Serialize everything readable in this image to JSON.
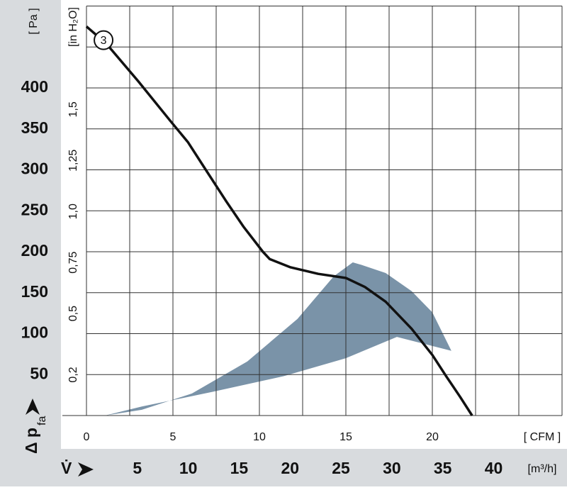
{
  "chart_data": {
    "type": "line",
    "xlabel": "[ CFM ]",
    "ylabel": "[ Pa ]",
    "y2label": "[in H₂O]",
    "ylabel_main": "Δ p",
    "ylabel_sub": "fa",
    "x2label_main": "V̇",
    "x2label": "[m³/h]",
    "xlim": [
      0,
      27.5
    ],
    "xticks": [
      0,
      5,
      10,
      15,
      20
    ],
    "xgrid": [
      0,
      2.5,
      5,
      7.5,
      10,
      12.5,
      15,
      17.5,
      20,
      22.5,
      25,
      27.5
    ],
    "x2lim": [
      0,
      46.72
    ],
    "x2ticks": [
      5,
      10,
      15,
      20,
      25,
      30,
      35,
      40
    ],
    "ylim": [
      0,
      500
    ],
    "yticks": [
      50,
      100,
      150,
      200,
      250,
      300,
      350,
      400
    ],
    "ygrid": [
      0,
      50,
      100,
      150,
      200,
      250,
      300,
      350,
      400,
      450,
      500
    ],
    "y2lim": [
      0,
      2.007
    ],
    "y2ticks": [
      {
        "value": 0.2,
        "label": "0,2"
      },
      {
        "value": 0.5,
        "label": "0,5"
      },
      {
        "value": 0.75,
        "label": "0,75"
      },
      {
        "value": 1.0,
        "label": "1,0"
      },
      {
        "value": 1.25,
        "label": "1,25"
      },
      {
        "value": 1.5,
        "label": "1,5"
      }
    ],
    "grid": true,
    "area": {
      "color": "#7a93a8",
      "x": [
        1.07,
        3.2,
        7.3,
        11.4,
        15,
        17.95,
        21.1,
        20,
        18.8,
        17.3,
        15.9,
        15.4,
        14.3,
        12.2,
        9.3,
        6.1,
        3.2
      ],
      "values": [
        0,
        11,
        29,
        48,
        70,
        96,
        79,
        126,
        152,
        174,
        184,
        187,
        170,
        118,
        66,
        27,
        7
      ]
    },
    "series": [
      {
        "name": "3",
        "color": "#111111",
        "x": [
          0,
          1.15,
          3.0,
          4.84,
          5.86,
          6.9,
          8.1,
          9.1,
          10.2,
          10.6,
          11.8,
          13.4,
          15.0,
          16.1,
          17.3,
          18.8,
          20.0,
          20.8,
          21.6,
          22.3
        ],
        "values": [
          475,
          454,
          408,
          360,
          334,
          300,
          261,
          230,
          200,
          191,
          181,
          173,
          168,
          157,
          139,
          106,
          74,
          48,
          23,
          0
        ]
      }
    ]
  }
}
